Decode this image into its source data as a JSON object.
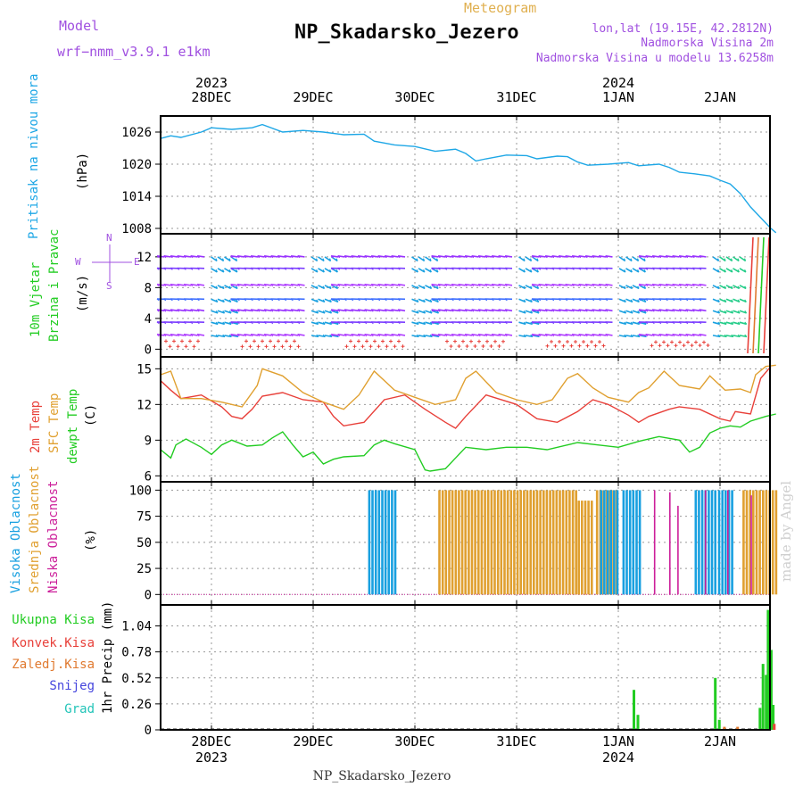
{
  "header": {
    "meteogram": "Meteogram",
    "model_label": "Model",
    "model_name": "wrf−nmm_v3.9.1 e1km",
    "station": "NP_Skadarsko_Jezero",
    "lonlat": "lon,lat (19.15E, 42.2812N)",
    "altitude": "Nadmorska Visina 2m",
    "model_altitude": "Nadmorska Visina u modelu 13.6258m",
    "footer_station": "NP_Skadarsko_Jezero",
    "credit": "made by Angel"
  },
  "colors": {
    "pressure": "#1ea7e6",
    "temp2m": "#e8403a",
    "sfc": "#e0a030",
    "dewpt": "#22cc22",
    "high_cloud": "#18a0e0",
    "mid_cloud": "#e0a030",
    "low_cloud": "#cc1f9a",
    "precip_total": "#22cc22",
    "precip_conv": "#e8403a",
    "precip_frz": "#e07a30",
    "snow": "#4444dd",
    "grad": "#22c4b8",
    "wind": "#9933ff",
    "header_purple": "#a050e0",
    "header_gold": "#e0b050"
  },
  "chart_data": [
    {
      "panel": "pressure",
      "type": "line",
      "ylabel": [
        "Pritisak na nivou mora",
        "(hPa)"
      ],
      "yticks": [
        1008,
        1014,
        1020,
        1026
      ],
      "ylim": [
        1007,
        1029
      ],
      "grid": true,
      "x_days": [
        "28DEC",
        "29DEC",
        "30DEC",
        "31DEC",
        "1JAN",
        "2JAN"
      ],
      "x_years_top": {
        "28DEC": "2023",
        "1JAN": "2024"
      },
      "series": [
        {
          "color": "pressure",
          "points": [
            [
              -0.5,
              1024.8
            ],
            [
              -0.4,
              1025.3
            ],
            [
              -0.3,
              1025.0
            ],
            [
              -0.1,
              1026.0
            ],
            [
              0.0,
              1026.8
            ],
            [
              0.2,
              1026.5
            ],
            [
              0.4,
              1026.8
            ],
            [
              0.5,
              1027.4
            ],
            [
              0.7,
              1026.0
            ],
            [
              0.9,
              1026.3
            ],
            [
              1.1,
              1026.0
            ],
            [
              1.3,
              1025.5
            ],
            [
              1.5,
              1025.6
            ],
            [
              1.6,
              1024.3
            ],
            [
              1.8,
              1023.6
            ],
            [
              2.0,
              1023.3
            ],
            [
              2.2,
              1022.4
            ],
            [
              2.4,
              1022.8
            ],
            [
              2.5,
              1022.0
            ],
            [
              2.6,
              1020.6
            ],
            [
              2.7,
              1021.0
            ],
            [
              2.9,
              1021.7
            ],
            [
              3.1,
              1021.6
            ],
            [
              3.2,
              1021.0
            ],
            [
              3.4,
              1021.5
            ],
            [
              3.5,
              1021.4
            ],
            [
              3.6,
              1020.4
            ],
            [
              3.7,
              1019.8
            ],
            [
              3.9,
              1020.0
            ],
            [
              4.1,
              1020.3
            ],
            [
              4.2,
              1019.7
            ],
            [
              4.4,
              1020.0
            ],
            [
              4.5,
              1019.4
            ],
            [
              4.6,
              1018.5
            ],
            [
              4.75,
              1018.2
            ],
            [
              4.9,
              1017.8
            ],
            [
              5.0,
              1017.0
            ],
            [
              5.1,
              1016.3
            ],
            [
              5.2,
              1014.5
            ],
            [
              5.3,
              1012.0
            ],
            [
              5.4,
              1010.0
            ],
            [
              5.5,
              1008.0
            ],
            [
              5.55,
              1007.2
            ]
          ]
        }
      ]
    },
    {
      "panel": "wind",
      "type": "scatter",
      "title": [
        "10m Vjetar",
        "Brzina i Pravac"
      ],
      "ylabel": "(m/s)",
      "compass": {
        "north": "N",
        "west": "W",
        "east": "E",
        "south": "S"
      },
      "yticks": [
        0,
        4,
        8,
        12
      ],
      "ylim": [
        -1,
        15
      ],
      "levels": [
        12,
        10.5,
        8.3,
        6.5,
        5,
        3.5,
        1.8
      ],
      "calm_level": 0.7,
      "grid": true
    },
    {
      "panel": "temperature",
      "type": "line",
      "labels": [
        "2m Temp",
        "SFC Temp",
        "dewpt Temp"
      ],
      "ylabel": "(C)",
      "yticks": [
        6,
        9,
        12,
        15
      ],
      "ylim": [
        5.5,
        16
      ],
      "grid": true,
      "series": [
        {
          "name": "2m Temp",
          "color": "temp2m",
          "points": [
            [
              -0.5,
              14.0
            ],
            [
              -0.4,
              13.2
            ],
            [
              -0.3,
              12.5
            ],
            [
              -0.1,
              12.8
            ],
            [
              0.1,
              11.8
            ],
            [
              0.2,
              11.0
            ],
            [
              0.3,
              10.8
            ],
            [
              0.4,
              11.6
            ],
            [
              0.5,
              12.7
            ],
            [
              0.7,
              13.0
            ],
            [
              0.9,
              12.4
            ],
            [
              1.1,
              12.2
            ],
            [
              1.2,
              11.0
            ],
            [
              1.3,
              10.2
            ],
            [
              1.5,
              10.5
            ],
            [
              1.7,
              12.4
            ],
            [
              1.9,
              12.8
            ],
            [
              2.1,
              11.6
            ],
            [
              2.3,
              10.5
            ],
            [
              2.4,
              10.0
            ],
            [
              2.5,
              11.0
            ],
            [
              2.7,
              12.8
            ],
            [
              3.0,
              12.0
            ],
            [
              3.2,
              10.8
            ],
            [
              3.4,
              10.5
            ],
            [
              3.6,
              11.4
            ],
            [
              3.75,
              12.4
            ],
            [
              3.9,
              12.0
            ],
            [
              4.1,
              11.1
            ],
            [
              4.2,
              10.5
            ],
            [
              4.3,
              11.0
            ],
            [
              4.5,
              11.6
            ],
            [
              4.6,
              11.8
            ],
            [
              4.8,
              11.6
            ],
            [
              5.0,
              10.8
            ],
            [
              5.1,
              10.6
            ],
            [
              5.15,
              11.4
            ],
            [
              5.3,
              11.2
            ],
            [
              5.4,
              14.2
            ],
            [
              5.5,
              15.2
            ]
          ]
        },
        {
          "name": "SFC Temp",
          "color": "sfc",
          "points": [
            [
              -0.5,
              14.5
            ],
            [
              -0.4,
              14.8
            ],
            [
              -0.3,
              12.5
            ],
            [
              -0.1,
              12.5
            ],
            [
              0.1,
              12.2
            ],
            [
              0.3,
              11.8
            ],
            [
              0.45,
              13.6
            ],
            [
              0.5,
              15.0
            ],
            [
              0.7,
              14.4
            ],
            [
              0.9,
              13.0
            ],
            [
              1.1,
              12.2
            ],
            [
              1.3,
              11.6
            ],
            [
              1.45,
              12.8
            ],
            [
              1.6,
              14.8
            ],
            [
              1.8,
              13.2
            ],
            [
              2.0,
              12.6
            ],
            [
              2.2,
              12.0
            ],
            [
              2.4,
              12.4
            ],
            [
              2.5,
              14.2
            ],
            [
              2.6,
              14.8
            ],
            [
              2.8,
              13.0
            ],
            [
              3.0,
              12.4
            ],
            [
              3.2,
              12.0
            ],
            [
              3.35,
              12.4
            ],
            [
              3.5,
              14.2
            ],
            [
              3.6,
              14.6
            ],
            [
              3.75,
              13.4
            ],
            [
              3.9,
              12.6
            ],
            [
              4.1,
              12.2
            ],
            [
              4.2,
              13.0
            ],
            [
              4.3,
              13.4
            ],
            [
              4.45,
              14.8
            ],
            [
              4.6,
              13.6
            ],
            [
              4.8,
              13.3
            ],
            [
              4.9,
              14.4
            ],
            [
              5.05,
              13.2
            ],
            [
              5.2,
              13.3
            ],
            [
              5.3,
              13.0
            ],
            [
              5.35,
              14.5
            ],
            [
              5.45,
              15.2
            ],
            [
              5.55,
              15.3
            ]
          ]
        },
        {
          "name": "dewpt Temp",
          "color": "dewpt",
          "points": [
            [
              -0.5,
              8.2
            ],
            [
              -0.4,
              7.5
            ],
            [
              -0.35,
              8.6
            ],
            [
              -0.25,
              9.1
            ],
            [
              -0.1,
              8.4
            ],
            [
              0.0,
              7.8
            ],
            [
              0.1,
              8.6
            ],
            [
              0.2,
              9.0
            ],
            [
              0.35,
              8.5
            ],
            [
              0.5,
              8.6
            ],
            [
              0.6,
              9.2
            ],
            [
              0.7,
              9.7
            ],
            [
              0.8,
              8.6
            ],
            [
              0.9,
              7.6
            ],
            [
              1.0,
              8.0
            ],
            [
              1.1,
              7.0
            ],
            [
              1.2,
              7.4
            ],
            [
              1.3,
              7.6
            ],
            [
              1.5,
              7.7
            ],
            [
              1.6,
              8.6
            ],
            [
              1.7,
              9.0
            ],
            [
              1.8,
              8.7
            ],
            [
              2.0,
              8.2
            ],
            [
              2.1,
              6.5
            ],
            [
              2.15,
              6.4
            ],
            [
              2.3,
              6.6
            ],
            [
              2.4,
              7.5
            ],
            [
              2.5,
              8.4
            ],
            [
              2.7,
              8.2
            ],
            [
              2.9,
              8.4
            ],
            [
              3.1,
              8.4
            ],
            [
              3.3,
              8.2
            ],
            [
              3.5,
              8.6
            ],
            [
              3.6,
              8.8
            ],
            [
              3.8,
              8.6
            ],
            [
              4.0,
              8.4
            ],
            [
              4.2,
              8.9
            ],
            [
              4.4,
              9.3
            ],
            [
              4.6,
              9.0
            ],
            [
              4.7,
              8.0
            ],
            [
              4.8,
              8.4
            ],
            [
              4.9,
              9.6
            ],
            [
              5.0,
              10.0
            ],
            [
              5.1,
              10.2
            ],
            [
              5.2,
              10.1
            ],
            [
              5.3,
              10.6
            ],
            [
              5.45,
              11.0
            ],
            [
              5.55,
              11.2
            ]
          ]
        }
      ]
    },
    {
      "panel": "cloud",
      "type": "bar",
      "labels": [
        "Visoka Oblacnost",
        "Srednja Oblacnost",
        "Niska Oblacnost"
      ],
      "ylabel": "(%)",
      "yticks": [
        0,
        25,
        50,
        75,
        100
      ],
      "ylim": [
        -10,
        108
      ],
      "grid": true,
      "high_blocks": [
        [
          1.54,
          1.8,
          100
        ],
        [
          3.82,
          3.98,
          100
        ],
        [
          4.04,
          4.22,
          100
        ],
        [
          4.75,
          4.95,
          100
        ],
        [
          4.98,
          5.14,
          100
        ]
      ],
      "mid_blocks": [
        [
          2.23,
          3.6,
          100
        ],
        [
          3.6,
          3.75,
          90
        ],
        [
          3.78,
          4.0,
          100
        ],
        [
          5.22,
          5.55,
          100
        ]
      ],
      "low_bars": [
        [
          4.35,
          100
        ],
        [
          4.5,
          98
        ],
        [
          4.58,
          85
        ],
        [
          4.85,
          100
        ],
        [
          5.07,
          100
        ],
        [
          5.3,
          95
        ]
      ]
    },
    {
      "panel": "precip",
      "type": "bar",
      "labels": [
        "Ukupna Kisa",
        "Konvek.Kisa",
        "Zaledj.Kisa",
        "Snijeg",
        "Grad"
      ],
      "ylabel": "1hr Precip (mm)",
      "yticks": [
        0,
        0.26,
        0.52,
        0.78,
        1.04
      ],
      "ylim": [
        0,
        1.25
      ],
      "grid": true,
      "series": [
        {
          "name": "Ukupna Kisa",
          "color": "precip_total",
          "bars": [
            [
              4.14,
              0.4
            ],
            [
              4.18,
              0.15
            ],
            [
              4.94,
              0.52
            ],
            [
              4.98,
              0.1
            ],
            [
              5.38,
              0.22
            ],
            [
              5.41,
              0.66
            ],
            [
              5.44,
              0.55
            ],
            [
              5.46,
              1.2
            ],
            [
              5.49,
              0.8
            ],
            [
              5.51,
              0.25
            ]
          ]
        },
        {
          "name": "Konvek.Kisa",
          "color": "precip_conv",
          "bars": [
            [
              5.52,
              0.06
            ]
          ]
        },
        {
          "name": "Zaledj.Kisa",
          "color": "precip_frz",
          "bars": [
            [
              5.03,
              0.03
            ],
            [
              5.16,
              0.03
            ]
          ]
        }
      ]
    }
  ]
}
